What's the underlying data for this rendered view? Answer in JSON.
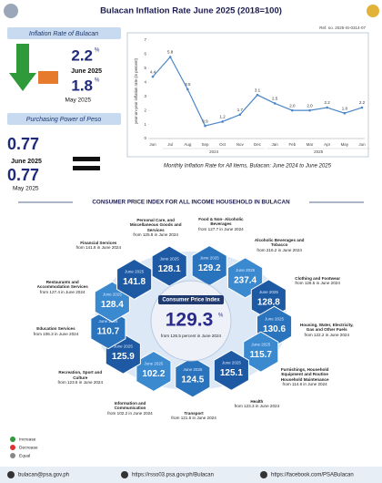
{
  "header": {
    "title": "Bulacan Inflation Rate June 2025 (2018=100)",
    "ref": "Ref. no. 2025-IS-0314-07"
  },
  "inflation": {
    "title": "Inflation Rate of Bulacan",
    "current": {
      "value": "2.2",
      "unit": "%",
      "period": "June 2025"
    },
    "previous": {
      "value": "1.8",
      "unit": "%",
      "period": "May 2025"
    }
  },
  "purchasing_power": {
    "title": "Purchasing Power of Peso",
    "current": {
      "value": "0.77",
      "period": "June 2025"
    },
    "previous": {
      "value": "0.77",
      "period": "May 2025"
    }
  },
  "chart_data": {
    "type": "line",
    "categories": [
      "Jun",
      "Jul",
      "Aug",
      "Sep",
      "Oct",
      "Nov",
      "Dec",
      "Jan",
      "Feb",
      "Mar",
      "Apr",
      "May",
      "Jun"
    ],
    "groups": [
      {
        "label": "2024",
        "from": 1,
        "to": 6
      },
      {
        "label": "2025",
        "from": 7,
        "to": 12
      }
    ],
    "values": [
      4.4,
      5.8,
      3.5,
      0.9,
      1.2,
      1.7,
      3.1,
      2.5,
      2.0,
      2.0,
      2.2,
      1.8,
      2.2
    ],
    "value_labels": [
      "4.4",
      "5.8",
      "3.5",
      "0.9",
      "1.2",
      "1.7",
      "3.1",
      "2.5",
      "2.0",
      "2.0",
      "2.2",
      "1.8",
      "2.2"
    ],
    "color": "#4a86c8",
    "ylim": [
      0,
      7
    ],
    "yticks": [
      0,
      1,
      2,
      3,
      4,
      5,
      6,
      7
    ],
    "grid": false,
    "ylabel": "year-on-year inflation rate (in percent)",
    "caption": "Monthly Inflation Rate for All Items, Bulacan: June 2024 to June 2025"
  },
  "cpi": {
    "title": "CONSUMER PRICE INDEX FOR ALL INCOME HOUSEHOLD IN BULACAN",
    "period": "June 2025",
    "center": {
      "label": "Consumer Price Index",
      "value": "129.3",
      "unit": "%",
      "from": "from 126.5 percent in June 2024"
    },
    "items": [
      {
        "name": "Personal Care, and Miscellaneous Goods and Services",
        "value": "128.1",
        "from": "from 125.8 in June 2024"
      },
      {
        "name": "Food & Non- Alcoholic Beverages",
        "value": "129.2",
        "from": "from 127.7 in June 2024"
      },
      {
        "name": "Alcoholic Beverages and Tobacco",
        "value": "237.4",
        "from": "from 216.2 in June 2024"
      },
      {
        "name": "Clothing and Footwear",
        "value": "128.8",
        "from": "from 126.5 in June 2024"
      },
      {
        "name": "Housing, Water, Electricity, Gas and Other Fuels",
        "value": "130.6",
        "from": "from 122.2 in June 2024"
      },
      {
        "name": "Furnishings, Household Equipment and Routine Household Maintenance",
        "value": "115.7",
        "from": "from 114.6 in June 2024"
      },
      {
        "name": "Health",
        "value": "125.1",
        "from": "from 123.3 in June 2024"
      },
      {
        "name": "Transport",
        "value": "124.5",
        "from": "from 121.6 in June 2024"
      },
      {
        "name": "Information and Communication",
        "value": "102.2",
        "from": "from 102.2 in June 2024"
      },
      {
        "name": "Recreation, Sport and Culture",
        "value": "125.9",
        "from": "from 123.6 in June 2024"
      },
      {
        "name": "Education Services",
        "value": "110.7",
        "from": "from 106.3 in June 2024"
      },
      {
        "name": "Restaurants and Accommodation Services",
        "value": "128.4",
        "from": "from 127.4 in June 2024"
      },
      {
        "name": "Financial Services",
        "value": "141.8",
        "from": "from 141.8 in June 2024"
      }
    ]
  },
  "legend": [
    "Increase",
    "Decrease",
    "Equal"
  ],
  "footer": {
    "email": "bulacan@psa.gov.ph",
    "website": "https://rsso03.psa.gov.ph/Bulacan",
    "facebook": "https://facebook.com/PSABulacan"
  }
}
